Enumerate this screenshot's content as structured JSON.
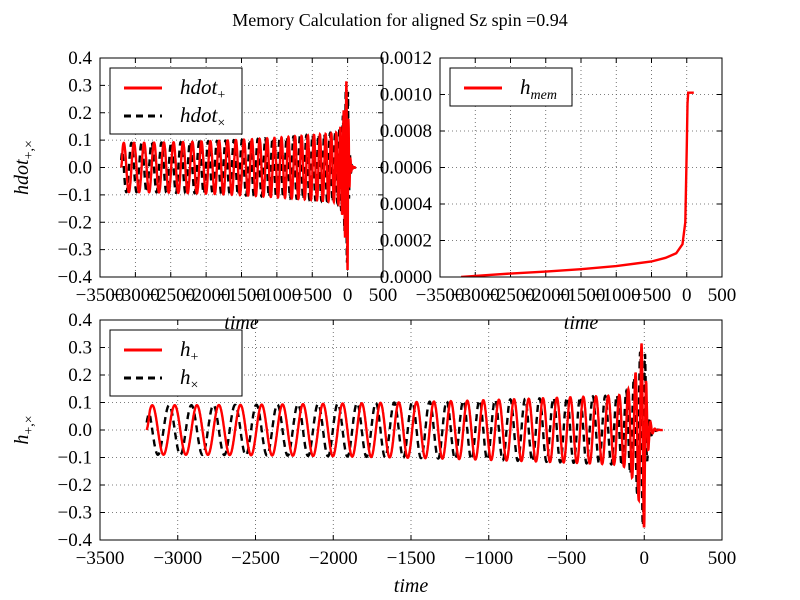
{
  "figure": {
    "title": "Memory Calculation for aligned Sz spin =0.94",
    "colors": {
      "plus": "#ff0000",
      "cross": "#000000"
    }
  },
  "chart_data": [
    {
      "id": "top-left",
      "type": "line",
      "xlabel": "time",
      "ylabel_main": "hdot",
      "ylabel_sub": "+,×",
      "xlim": [
        -3500,
        500
      ],
      "ylim": [
        -0.4,
        0.4
      ],
      "xticks": [
        "−3500",
        "−3000",
        "−2500",
        "−2000",
        "−1500",
        "−1000",
        "−500",
        "0",
        "500"
      ],
      "yticks": [
        "−0.4",
        "−0.3",
        "−0.2",
        "−0.1",
        "0.0",
        "0.1",
        "0.2",
        "0.3",
        "0.4"
      ],
      "grid": true,
      "legend_position": "top-left",
      "series": [
        {
          "name": "hdot",
          "name_sub": "+",
          "style": "solid",
          "color": "#ff0000"
        },
        {
          "name": "hdot",
          "name_sub": "×",
          "style": "dashed",
          "color": "#000000"
        }
      ],
      "waveform": {
        "start": -3200,
        "merger": 0,
        "early_amplitude": 0.09,
        "late_amplitude": 0.13,
        "peak": 0.39,
        "min": -0.37,
        "period_start": 145,
        "period_end": 70
      }
    },
    {
      "id": "top-right",
      "type": "line",
      "xlabel": "time",
      "xlim": [
        -3500,
        500
      ],
      "ylim": [
        0,
        0.0012
      ],
      "xticks": [
        "−3500",
        "−3000",
        "−2500",
        "−2000",
        "−1500",
        "−1000",
        "−500",
        "0",
        "500"
      ],
      "yticks": [
        "0.0000",
        "0.0002",
        "0.0004",
        "0.0006",
        "0.0008",
        "0.0010",
        "0.0012"
      ],
      "grid": true,
      "legend_position": "top-left",
      "series": [
        {
          "name": "h",
          "name_sub": "mem",
          "style": "solid",
          "color": "#ff0000",
          "x": [
            -3200,
            -3000,
            -2500,
            -2000,
            -1500,
            -1000,
            -500,
            -300,
            -150,
            -60,
            -20,
            0,
            10,
            20,
            50,
            100
          ],
          "y": [
            0.0,
            6e-06,
            1.9e-05,
            3e-05,
            4.3e-05,
            6e-05,
            8.5e-05,
            0.000105,
            0.00013,
            0.00018,
            0.0003,
            0.00072,
            0.00095,
            0.00101,
            0.00101,
            0.00101
          ]
        }
      ]
    },
    {
      "id": "bottom",
      "type": "line",
      "xlabel": "time",
      "ylabel_main": "h",
      "ylabel_sub": "+,×",
      "xlim": [
        -3500,
        500
      ],
      "ylim": [
        -0.4,
        0.4
      ],
      "xticks": [
        "−3500",
        "−3000",
        "−2500",
        "−2000",
        "−1500",
        "−1000",
        "−500",
        "0",
        "500"
      ],
      "yticks": [
        "−0.4",
        "−0.3",
        "−0.2",
        "−0.1",
        "0.0",
        "0.1",
        "0.2",
        "0.3",
        "0.4"
      ],
      "grid": true,
      "legend_position": "top-left",
      "series": [
        {
          "name": "h",
          "name_sub": "+",
          "style": "solid",
          "color": "#ff0000"
        },
        {
          "name": "h",
          "name_sub": "×",
          "style": "dashed",
          "color": "#000000"
        }
      ],
      "waveform": {
        "start": -3200,
        "merger": 0,
        "early_amplitude": 0.09,
        "late_amplitude": 0.13,
        "peak": 0.39,
        "min": -0.35,
        "period_start": 145,
        "period_end": 70
      }
    }
  ]
}
